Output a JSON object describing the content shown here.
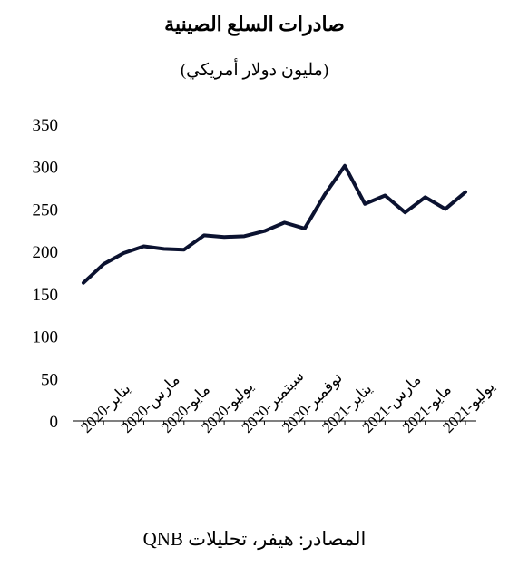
{
  "chart_data": {
    "type": "line",
    "title": "صادرات السلع الصينية",
    "subtitle": "(مليون دولار أمريكي)",
    "source": "المصادر: هيفر، تحليلات QNB",
    "xlabel": "",
    "ylabel": "",
    "ylim": [
      0,
      350
    ],
    "yticks": [
      "0",
      "50",
      "100",
      "150",
      "200",
      "250",
      "300",
      "350"
    ],
    "x_tick_labels": [
      "يناير-2020",
      "مارس-2020",
      "مايو-2020",
      "يوليو-2020",
      "سبتمبر-2020",
      "نوفمبر-2020",
      "يناير-2021",
      "مارس-2021",
      "مايو-2021",
      "يوليو-2021"
    ],
    "x": [
      "يناير-2020",
      "فبراير-2020",
      "مارس-2020",
      "أبريل-2020",
      "مايو-2020",
      "يونيو-2020",
      "يوليو-2020",
      "أغسطس-2020",
      "سبتمبر-2020",
      "أكتوبر-2020",
      "نوفمبر-2020",
      "ديسمبر-2020",
      "يناير-2021",
      "فبراير-2021",
      "مارس-2021",
      "أبريل-2021",
      "مايو-2021",
      "يونيو-2021",
      "يوليو-2021",
      "أغسطس-2021"
    ],
    "series": [
      {
        "values": [
          163,
          185,
          198,
          206,
          203,
          202,
          219,
          217,
          218,
          224,
          234,
          227,
          267,
          301,
          256,
          266,
          246,
          264,
          250,
          270
        ]
      }
    ],
    "grid": false,
    "line_color": "#0b1230"
  }
}
